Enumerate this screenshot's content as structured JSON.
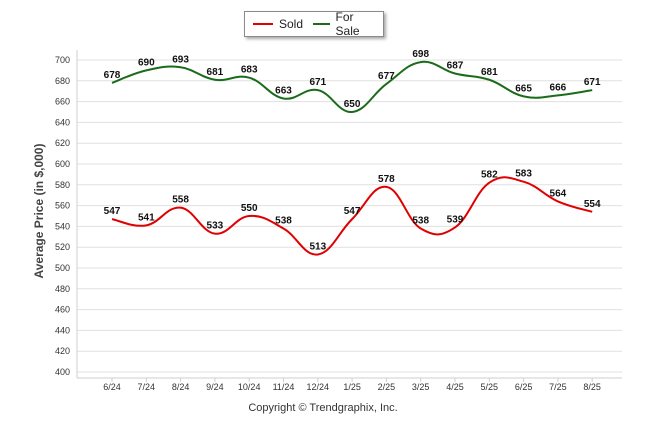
{
  "legend": {
    "sold_label": "Sold",
    "for_sale_label": "For Sale"
  },
  "copyright": "Copyright © Trendgraphix, Inc.",
  "colors": {
    "sold": "#e00000",
    "for_sale": "#1a6b1a",
    "grid": "#e0e0e0"
  },
  "chart_data": {
    "type": "line",
    "categories": [
      "6/24",
      "7/24",
      "8/24",
      "9/24",
      "10/24",
      "11/24",
      "12/24",
      "1/25",
      "2/25",
      "3/25",
      "4/25",
      "5/25",
      "6/25",
      "7/25",
      "8/25"
    ],
    "series": [
      {
        "name": "Sold",
        "values": [
          547,
          541,
          558,
          533,
          550,
          538,
          513,
          547,
          578,
          538,
          539,
          582,
          583,
          564,
          554
        ]
      },
      {
        "name": "For Sale",
        "values": [
          678,
          690,
          693,
          681,
          683,
          663,
          671,
          650,
          677,
          698,
          687,
          681,
          665,
          666,
          671
        ]
      }
    ],
    "ylabel": "Average Price (in $,000)",
    "ylim": [
      400,
      700
    ],
    "yticks": [
      400,
      420,
      440,
      460,
      480,
      500,
      520,
      540,
      560,
      580,
      600,
      620,
      640,
      660,
      680,
      700
    ],
    "grid": true,
    "legend_position": "top-center"
  }
}
